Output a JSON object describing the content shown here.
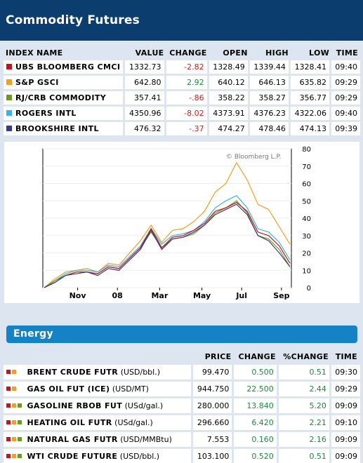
{
  "page": {
    "title": "Commodity Futures"
  },
  "indices": {
    "headers": [
      "INDEX NAME",
      "VALUE",
      "CHANGE",
      "OPEN",
      "HIGH",
      "LOW",
      "TIME"
    ],
    "rows": [
      {
        "name": "UBS BLOOMBERG CMCI",
        "color": "#c0151b",
        "value": "1332.73",
        "change": "-2.82",
        "dir": "neg",
        "open": "1328.49",
        "high": "1339.44",
        "low": "1328.41",
        "time": "09:40"
      },
      {
        "name": "S&P GSCI",
        "color": "#f0a020",
        "value": "642.80",
        "change": "2.92",
        "dir": "pos",
        "open": "640.12",
        "high": "646.13",
        "low": "635.82",
        "time": "09:29"
      },
      {
        "name": "RJ/CRB COMMODITY",
        "color": "#6a9a1e",
        "value": "357.41",
        "change": "-.86",
        "dir": "neg",
        "open": "358.22",
        "high": "358.27",
        "low": "356.77",
        "time": "09:29"
      },
      {
        "name": "ROGERS INTL",
        "color": "#3ab4e6",
        "value": "4350.96",
        "change": "-8.02",
        "dir": "neg",
        "open": "4373.91",
        "high": "4376.23",
        "low": "4322.06",
        "time": "09:40"
      },
      {
        "name": "BROOKSHIRE INTL",
        "color": "#3a3a8c",
        "value": "476.32",
        "change": "-.37",
        "dir": "neg",
        "open": "474.27",
        "high": "478.46",
        "low": "474.13",
        "time": "09:39"
      }
    ]
  },
  "chart_data": {
    "type": "line",
    "watermark": "© Bloomberg L.P.",
    "x_ticks": [
      "Nov",
      "08",
      "Mar",
      "May",
      "Jul",
      "Sep"
    ],
    "y_ticks": [
      0,
      10,
      20,
      30,
      40,
      50,
      60,
      70,
      80
    ],
    "ylim": [
      0,
      80
    ],
    "x_count": 24,
    "series": [
      {
        "color": "#f0a020",
        "values": [
          0,
          5,
          9,
          10,
          11,
          9,
          14,
          13,
          20,
          27,
          36,
          26,
          33,
          34,
          38,
          44,
          55,
          60,
          72,
          62,
          48,
          45,
          35,
          25
        ]
      },
      {
        "color": "#3ab4e6",
        "values": [
          0,
          4,
          8,
          10,
          10,
          9,
          13,
          12,
          18,
          24,
          34,
          25,
          30,
          31,
          33,
          38,
          46,
          50,
          53,
          46,
          34,
          32,
          26,
          16
        ]
      },
      {
        "color": "#6a9a1e",
        "values": [
          0,
          4,
          7,
          9,
          9,
          8,
          12,
          11,
          17,
          23,
          32,
          23,
          28,
          29,
          31,
          36,
          43,
          46,
          50,
          43,
          30,
          28,
          22,
          12
        ]
      },
      {
        "color": "#c0151b",
        "values": [
          0,
          3,
          7,
          9,
          9,
          8,
          12,
          11,
          17,
          23,
          34,
          23,
          29,
          30,
          33,
          37,
          44,
          46,
          49,
          44,
          32,
          30,
          24,
          14
        ]
      },
      {
        "color": "#3a3a8c",
        "values": [
          0,
          3,
          7,
          8,
          9,
          7,
          11,
          10,
          16,
          22,
          33,
          22,
          28,
          29,
          32,
          36,
          42,
          45,
          48,
          42,
          30,
          27,
          20,
          12
        ]
      }
    ]
  },
  "energy": {
    "section_title": "Energy",
    "headers": [
      "PRICE",
      "CHANGE",
      "%CHANGE",
      "TIME"
    ],
    "rows": [
      {
        "name": "BRENT CRUDE FUTR",
        "unit": "(USD/bbl.)",
        "minis": [
          "#c0151b",
          "#f0a020"
        ],
        "price": "99.470",
        "change": "0.500",
        "pct": "0.51",
        "time": "09:30"
      },
      {
        "name": "GAS OIL FUT (ICE)",
        "unit": "(USD/MT)",
        "minis": [
          "#c0151b",
          "#f0a020"
        ],
        "price": "944.750",
        "change": "22.500",
        "pct": "2.44",
        "time": "09:29"
      },
      {
        "name": "GASOLINE RBOB FUT",
        "unit": "(USd/gal.)",
        "minis": [
          "#c0151b",
          "#f0a020",
          "#6a9a1e"
        ],
        "price": "280.000",
        "change": "13.840",
        "pct": "5.20",
        "time": "09:09"
      },
      {
        "name": "HEATING OIL FUTR",
        "unit": "(USd/gal.)",
        "minis": [
          "#c0151b",
          "#f0a020",
          "#6a9a1e"
        ],
        "price": "296.660",
        "change": "6.420",
        "pct": "2.21",
        "time": "09:10"
      },
      {
        "name": "NATURAL GAS FUTR",
        "unit": "(USD/MMBtu)",
        "minis": [
          "#c0151b",
          "#f0a020",
          "#6a9a1e"
        ],
        "price": "7.553",
        "change": "0.160",
        "pct": "2.16",
        "time": "09:09"
      },
      {
        "name": "WTI CRUDE FUTURE",
        "unit": "(USD/bbl.)",
        "minis": [
          "#c0151b",
          "#f0a020",
          "#6a9a1e"
        ],
        "price": "103.100",
        "change": "0.520",
        "pct": "0.51",
        "time": "09:09"
      }
    ]
  }
}
